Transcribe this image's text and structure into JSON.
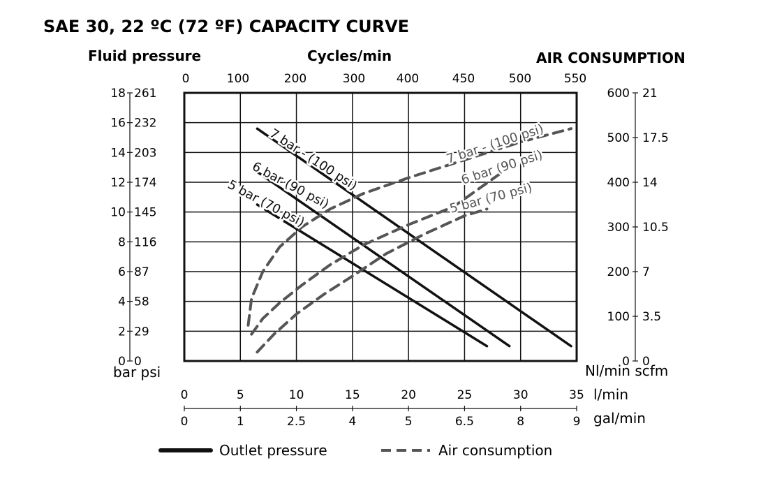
{
  "chart_data": {
    "type": "line",
    "title": "SAE 30, 22 ºC (72 ºF) CAPACITY CURVE",
    "left_axis": {
      "title": "Fluid pressure",
      "units": "bar psi",
      "bar_ticks": [
        "0",
        "2",
        "4",
        "6",
        "8",
        "10",
        "12",
        "14",
        "16",
        "18"
      ],
      "psi_ticks": [
        "0",
        "29",
        "58",
        "87",
        "116",
        "145",
        "174",
        "203",
        "232",
        "261"
      ],
      "range": [
        0,
        18
      ]
    },
    "top_axis": {
      "title": "Cycles/min",
      "ticks": [
        "0",
        "100",
        "200",
        "300",
        "400",
        "450",
        "500",
        "550"
      ]
    },
    "right_axis": {
      "title": "AIR CONSUMPTION",
      "units": "Nl/min scfm",
      "nlmin_ticks": [
        "0",
        "100",
        "200",
        "300",
        "400",
        "500",
        "600"
      ],
      "scfm_ticks": [
        "0",
        "3.5",
        "7",
        "10.5",
        "14",
        "17.5",
        "21"
      ],
      "range": [
        0,
        600
      ]
    },
    "bottom_axis_1": {
      "units": "l/min",
      "ticks": [
        "0",
        "5",
        "10",
        "15",
        "20",
        "25",
        "30",
        "35"
      ],
      "range": [
        0,
        35
      ]
    },
    "bottom_axis_2": {
      "units": "gal/min",
      "ticks": [
        "0",
        "1",
        "2.5",
        "4",
        "5",
        "6.5",
        "8",
        "9"
      ]
    },
    "grid": true,
    "series": [
      {
        "name": "7 bar - (100 psi)",
        "kind": "outlet",
        "axis": "left",
        "x": [
          6.5,
          34.5
        ],
        "y": [
          15.6,
          1.0
        ]
      },
      {
        "name": "6 bar (90 psi)",
        "kind": "outlet",
        "axis": "left",
        "x": [
          6.5,
          29.0
        ],
        "y": [
          12.7,
          1.0
        ]
      },
      {
        "name": "5 bar (70 psi)",
        "kind": "outlet",
        "axis": "left",
        "x": [
          6.5,
          27.0
        ],
        "y": [
          10.5,
          1.0
        ]
      },
      {
        "name": "7 bar - (100 psi)",
        "kind": "air",
        "axis": "right",
        "x": [
          5.7,
          6.0,
          7.0,
          8.5,
          10.5,
          13.0,
          16.0,
          20.0,
          25.0,
          30.0,
          34.5
        ],
        "y": [
          80,
          140,
          200,
          255,
          300,
          340,
          375,
          410,
          450,
          490,
          520
        ]
      },
      {
        "name": "6 bar (90 psi)",
        "kind": "air",
        "axis": "right",
        "x": [
          6.0,
          7.0,
          8.5,
          10.5,
          13.0,
          16.0,
          20.0,
          24.0,
          28.5
        ],
        "y": [
          60,
          95,
          130,
          170,
          215,
          260,
          305,
          345,
          425
        ]
      },
      {
        "name": "5 bar (70 psi)",
        "kind": "air",
        "axis": "right",
        "x": [
          6.5,
          8.0,
          10.0,
          12.5,
          15.0,
          18.0,
          21.5,
          25.0,
          27.0
        ],
        "y": [
          20,
          60,
          105,
          150,
          190,
          240,
          285,
          325,
          340
        ]
      }
    ],
    "legend": {
      "position": "bottom",
      "entries": [
        {
          "label": "Outlet pressure",
          "style": "solid"
        },
        {
          "label": "Air consumption",
          "style": "dashed"
        }
      ]
    },
    "colors": {
      "outlet": "#111111",
      "air": "#555555",
      "grid": "#111111"
    }
  }
}
